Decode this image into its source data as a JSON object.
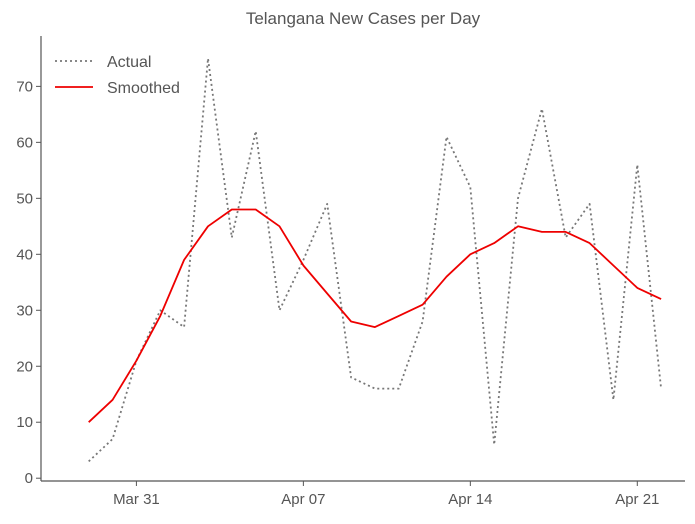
{
  "chart_data": {
    "type": "line",
    "title": "Telangana New Cases per Day",
    "xlabel": "",
    "ylabel": "",
    "x": [
      "2020-03-29",
      "2020-03-30",
      "2020-03-31",
      "2020-04-01",
      "2020-04-02",
      "2020-04-03",
      "2020-04-04",
      "2020-04-05",
      "2020-04-06",
      "2020-04-07",
      "2020-04-08",
      "2020-04-09",
      "2020-04-10",
      "2020-04-11",
      "2020-04-12",
      "2020-04-13",
      "2020-04-14",
      "2020-04-15",
      "2020-04-16",
      "2020-04-17",
      "2020-04-18",
      "2020-04-19",
      "2020-04-20",
      "2020-04-21",
      "2020-04-22"
    ],
    "xticks": [
      {
        "label": "Mar 31",
        "date": "2020-03-31"
      },
      {
        "label": "Apr 07",
        "date": "2020-04-07"
      },
      {
        "label": "Apr 14",
        "date": "2020-04-14"
      },
      {
        "label": "Apr 21",
        "date": "2020-04-21"
      }
    ],
    "yticks": [
      0,
      10,
      20,
      30,
      40,
      50,
      60,
      70
    ],
    "ylim": [
      -0.5,
      79
    ],
    "xlim": [
      "2020-03-27",
      "2020-04-23"
    ],
    "grid": false,
    "legend_position": "top-left",
    "series": [
      {
        "name": "Actual",
        "style": "dotted",
        "color": "#777777",
        "values": [
          3,
          7,
          21,
          30,
          27,
          75,
          43,
          62,
          30,
          39,
          49,
          18,
          16,
          16,
          28,
          61,
          52,
          6,
          50,
          66,
          43,
          49,
          14,
          56,
          16
        ]
      },
      {
        "name": "Smoothed",
        "style": "solid",
        "color": "#ee0000",
        "values": [
          10,
          14,
          21,
          29,
          39,
          45,
          48,
          48,
          45,
          38,
          33,
          28,
          27,
          29,
          31,
          36,
          40,
          42,
          45,
          44,
          44,
          42,
          38,
          34,
          32
        ]
      }
    ]
  }
}
